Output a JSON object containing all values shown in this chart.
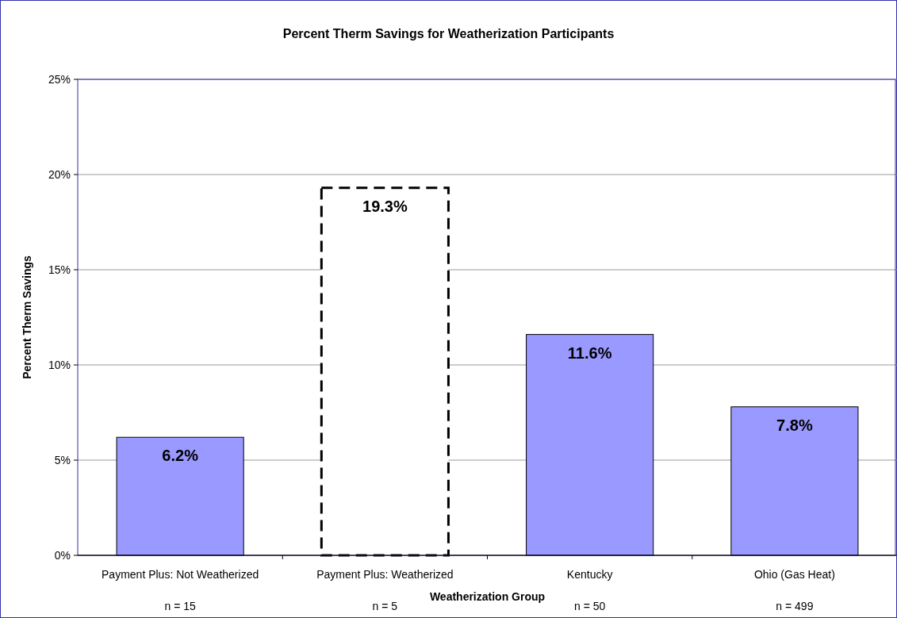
{
  "chart_data": {
    "type": "bar",
    "title": "Percent Therm Savings for Weatherization Participants",
    "xlabel": "Weatherization Group",
    "ylabel": "Percent Therm Savings",
    "categories": [
      "Payment Plus: Not Weatherized\nn = 15",
      "Payment Plus: Weatherized\nn = 5",
      "Kentucky\nn = 50",
      "Ohio (Gas Heat)\nn = 499"
    ],
    "series": [
      {
        "color": "#9999ff",
        "values": [
          6.2,
          null,
          11.6,
          7.8
        ],
        "value_labels": [
          "6.2%",
          null,
          "11.6%",
          "7.8%"
        ]
      },
      {
        "color": "#ffffff",
        "line_style": "dashed",
        "values": [
          null,
          19.3,
          null,
          null
        ],
        "value_labels": [
          null,
          "19.3%",
          null,
          null
        ]
      }
    ],
    "ylim": [
      0,
      25
    ],
    "yticks": [
      {
        "value": 0,
        "label": "0%"
      },
      {
        "value": 5,
        "label": "5%"
      },
      {
        "value": 10,
        "label": "10%"
      },
      {
        "value": 15,
        "label": "15%"
      },
      {
        "value": 20,
        "label": "20%"
      },
      {
        "value": 25,
        "label": "25%"
      }
    ],
    "grid": "y"
  }
}
